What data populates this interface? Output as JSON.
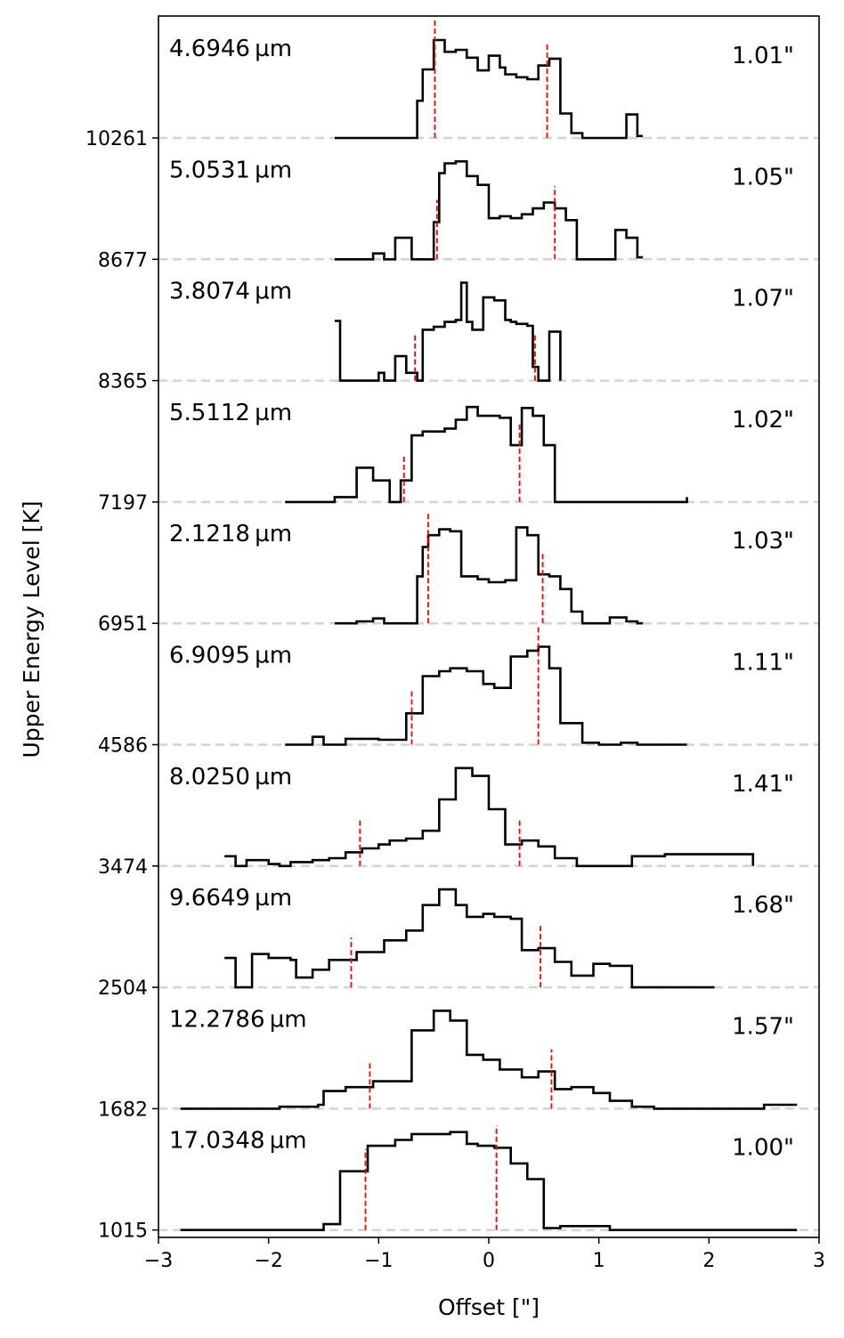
{
  "chart_data": {
    "type": "line",
    "drawstyle": "steps",
    "xlabel": "Offset [\"]",
    "ylabel": "Upper Energy Level [K]",
    "xlim": [
      -3,
      3
    ],
    "xticks": [
      -3,
      -2,
      -1,
      0,
      1,
      2,
      3
    ],
    "xtick_labels": [
      "−3",
      "−2",
      "−1",
      "0",
      "1",
      "2",
      "3"
    ],
    "baseline_color": "#d3d3d3",
    "line_color": "#000000",
    "marker_color": "#ff0000",
    "panels": [
      {
        "energy_label": "10261",
        "wavelength": "4.6946 µm",
        "width_label": "1.01\"",
        "markers": [
          -0.49,
          0.53
        ],
        "x": [
          -1.4,
          -0.65,
          -0.6,
          -0.5,
          -0.4,
          -0.3,
          -0.2,
          -0.1,
          0.0,
          0.1,
          0.15,
          0.25,
          0.35,
          0.45,
          0.55,
          0.65,
          0.75,
          0.85,
          1.25,
          1.35,
          1.4
        ],
        "y": [
          0.0,
          0.38,
          0.7,
          1.0,
          0.88,
          0.9,
          0.82,
          0.69,
          0.84,
          0.72,
          0.65,
          0.62,
          0.6,
          0.74,
          0.81,
          0.25,
          0.05,
          0.0,
          0.24,
          0.02,
          0.02
        ]
      },
      {
        "energy_label": "8677",
        "wavelength": "5.0531 µm",
        "width_label": "1.05\"",
        "markers": [
          -0.47,
          0.6
        ],
        "x": [
          -1.4,
          -1.05,
          -0.95,
          -0.85,
          -0.7,
          -0.6,
          -0.5,
          -0.45,
          -0.4,
          -0.3,
          -0.2,
          -0.1,
          0.0,
          0.1,
          0.2,
          0.3,
          0.4,
          0.5,
          0.6,
          0.7,
          0.8,
          1.15,
          1.25,
          1.35,
          1.4
        ],
        "y": [
          0.0,
          0.06,
          0.0,
          0.22,
          0.0,
          0.0,
          0.38,
          0.88,
          0.98,
          1.0,
          0.85,
          0.76,
          0.42,
          0.44,
          0.42,
          0.46,
          0.52,
          0.58,
          0.52,
          0.4,
          0.0,
          0.3,
          0.22,
          0.02,
          0.02
        ]
      },
      {
        "energy_label": "8365",
        "wavelength": "3.8074 µm",
        "width_label": "1.07\"",
        "markers": [
          -0.67,
          0.42
        ],
        "x": [
          -1.4,
          -1.35,
          -1.05,
          -1.0,
          -0.95,
          -0.85,
          -0.75,
          -0.65,
          -0.6,
          -0.5,
          -0.4,
          -0.3,
          -0.25,
          -0.2,
          -0.15,
          -0.05,
          0.05,
          0.15,
          0.2,
          0.25,
          0.35,
          0.4,
          0.45,
          0.55,
          0.65
        ],
        "y": [
          0.61,
          0.0,
          0.0,
          0.08,
          0.0,
          0.25,
          0.08,
          0.0,
          0.52,
          0.55,
          0.6,
          0.62,
          1.0,
          0.6,
          0.52,
          0.85,
          0.82,
          0.62,
          0.6,
          0.58,
          0.56,
          0.14,
          0.0,
          0.5,
          0.0
        ]
      },
      {
        "energy_label": "7197",
        "wavelength": "5.5112 µm",
        "width_label": "1.02\"",
        "markers": [
          -0.77,
          0.28
        ],
        "x": [
          -1.85,
          -1.4,
          -1.2,
          -1.05,
          -0.9,
          -0.8,
          -0.7,
          -0.6,
          -0.5,
          -0.4,
          -0.3,
          -0.2,
          -0.1,
          0.1,
          0.2,
          0.3,
          0.4,
          0.5,
          0.6,
          0.7,
          1.8
        ],
        "y": [
          0.0,
          0.05,
          0.35,
          0.22,
          0.0,
          0.22,
          0.68,
          0.72,
          0.72,
          0.75,
          0.84,
          0.97,
          0.88,
          0.86,
          0.58,
          0.96,
          0.88,
          0.58,
          0.0,
          0.0,
          0.05
        ]
      },
      {
        "energy_label": "6951",
        "wavelength": "2.1218 µm",
        "width_label": "1.03\"",
        "markers": [
          -0.55,
          0.49
        ],
        "x": [
          -1.4,
          -1.2,
          -1.05,
          -0.95,
          -0.85,
          -0.65,
          -0.6,
          -0.55,
          -0.45,
          -0.35,
          -0.25,
          -0.1,
          0.0,
          0.15,
          0.25,
          0.35,
          0.45,
          0.55,
          0.65,
          0.75,
          0.85,
          1.1,
          1.25,
          1.35,
          1.4
        ],
        "y": [
          0.0,
          0.02,
          0.05,
          0.0,
          0.0,
          0.48,
          0.78,
          0.9,
          0.96,
          0.94,
          0.48,
          0.45,
          0.42,
          0.44,
          0.98,
          0.9,
          0.5,
          0.48,
          0.35,
          0.12,
          0.0,
          0.06,
          0.02,
          0.0,
          0.0
        ]
      },
      {
        "energy_label": "4586",
        "wavelength": "6.9095 µm",
        "width_label": "1.11\"",
        "markers": [
          -0.7,
          0.45
        ],
        "x": [
          -1.85,
          -1.6,
          -1.5,
          -1.3,
          -1.0,
          -0.75,
          -0.6,
          -0.45,
          -0.35,
          -0.2,
          -0.05,
          0.05,
          0.2,
          0.35,
          0.45,
          0.55,
          0.65,
          0.85,
          1.0,
          1.2,
          1.35,
          1.8
        ],
        "y": [
          0.0,
          0.08,
          0.0,
          0.06,
          0.05,
          0.32,
          0.7,
          0.75,
          0.78,
          0.75,
          0.62,
          0.58,
          0.9,
          0.96,
          1.0,
          0.78,
          0.22,
          0.02,
          0.0,
          0.02,
          0.0,
          0.0
        ]
      },
      {
        "energy_label": "3474",
        "wavelength": "8.0250 µm",
        "width_label": "1.41\"",
        "markers": [
          -1.17,
          0.28
        ],
        "x": [
          -2.4,
          -2.3,
          -2.2,
          -2.0,
          -1.9,
          -1.8,
          -1.6,
          -1.45,
          -1.3,
          -1.15,
          -1.0,
          -0.9,
          -0.75,
          -0.6,
          -0.45,
          -0.3,
          -0.15,
          0.0,
          0.15,
          0.3,
          0.45,
          0.6,
          0.8,
          1.3,
          1.6,
          2.4
        ],
        "y": [
          0.1,
          0.0,
          0.06,
          0.02,
          0.0,
          0.04,
          0.06,
          0.08,
          0.14,
          0.18,
          0.22,
          0.26,
          0.28,
          0.36,
          0.68,
          1.0,
          0.92,
          0.58,
          0.22,
          0.26,
          0.2,
          0.08,
          0.0,
          0.1,
          0.12,
          0.0
        ]
      },
      {
        "energy_label": "2504",
        "wavelength": "9.6649 µm",
        "width_label": "1.68\"",
        "markers": [
          -1.25,
          0.47
        ],
        "x": [
          -2.4,
          -2.3,
          -2.15,
          -2.0,
          -1.8,
          -1.75,
          -1.6,
          -1.45,
          -1.2,
          -0.95,
          -0.75,
          -0.6,
          -0.55,
          -0.45,
          -0.3,
          -0.2,
          -0.05,
          0.05,
          0.2,
          0.3,
          0.45,
          0.6,
          0.75,
          0.95,
          1.1,
          1.3,
          2.05
        ],
        "y": [
          0.3,
          0.0,
          0.34,
          0.3,
          0.28,
          0.1,
          0.18,
          0.28,
          0.36,
          0.48,
          0.58,
          0.84,
          0.84,
          1.0,
          0.84,
          0.72,
          0.75,
          0.72,
          0.7,
          0.38,
          0.4,
          0.26,
          0.12,
          0.24,
          0.22,
          0.0,
          0.0
        ]
      },
      {
        "energy_label": "1682",
        "wavelength": "12.2786 µm",
        "width_label": "1.57\"",
        "markers": [
          -1.08,
          0.57
        ],
        "x": [
          -2.8,
          -1.9,
          -1.55,
          -1.5,
          -1.3,
          -1.05,
          -0.7,
          -0.5,
          -0.35,
          -0.2,
          -0.05,
          0.1,
          0.3,
          0.45,
          0.6,
          0.75,
          0.95,
          1.1,
          1.3,
          1.5,
          2.5,
          2.8
        ],
        "y": [
          0.0,
          0.02,
          0.04,
          0.18,
          0.22,
          0.28,
          0.8,
          1.0,
          0.9,
          0.55,
          0.5,
          0.4,
          0.32,
          0.38,
          0.2,
          0.22,
          0.16,
          0.08,
          0.02,
          0.0,
          0.04,
          0.04
        ]
      },
      {
        "energy_label": "1015",
        "wavelength": "17.0348 µm",
        "width_label": "1.00\"",
        "markers": [
          -1.12,
          0.07
        ],
        "x": [
          -2.8,
          -1.5,
          -1.35,
          -1.1,
          -0.85,
          -0.7,
          -0.55,
          -0.35,
          -0.2,
          -0.1,
          0.05,
          0.2,
          0.35,
          0.5,
          0.65,
          1.1,
          1.3,
          2.8
        ],
        "y": [
          0.0,
          0.06,
          0.6,
          0.86,
          0.92,
          0.98,
          0.98,
          1.0,
          0.88,
          0.86,
          0.84,
          0.68,
          0.52,
          0.02,
          0.04,
          0.0,
          0.0,
          0.0
        ]
      }
    ]
  }
}
